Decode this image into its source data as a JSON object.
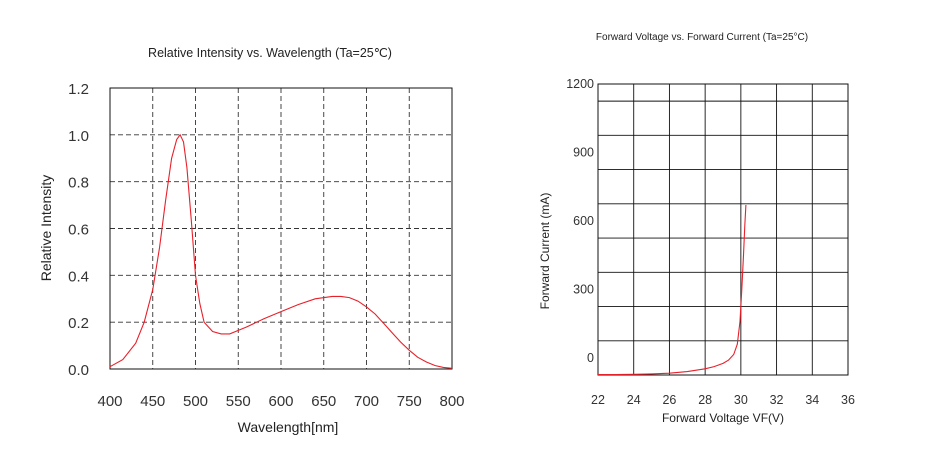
{
  "chart_data": [
    {
      "type": "line",
      "title": "Relative Intensity vs. Wavelength (Ta=25℃)",
      "xlabel": "Wavelength[nm]",
      "ylabel": "Relative Intensity",
      "xlim": [
        400,
        800
      ],
      "ylim": [
        0.0,
        1.2
      ],
      "xticks": [
        "400",
        "450",
        "500",
        "550",
        "600",
        "650",
        "700",
        "750",
        "800"
      ],
      "yticks": [
        "0.0",
        "0.2",
        "0.4",
        "0.6",
        "0.8",
        "1.0",
        "1.2"
      ],
      "grid": "dashed",
      "line_color": "#e8202a",
      "series": [
        {
          "x": [
            400,
            415,
            430,
            440,
            450,
            458,
            465,
            472,
            478,
            482,
            486,
            490,
            495,
            500,
            505,
            510,
            520,
            530,
            540,
            550,
            560,
            580,
            600,
            620,
            640,
            660,
            670,
            680,
            690,
            700,
            710,
            720,
            730,
            740,
            750,
            760,
            770,
            780,
            790,
            800
          ],
          "y": [
            0.01,
            0.04,
            0.11,
            0.2,
            0.34,
            0.52,
            0.72,
            0.9,
            0.98,
            1.0,
            0.97,
            0.86,
            0.64,
            0.4,
            0.28,
            0.2,
            0.16,
            0.15,
            0.15,
            0.165,
            0.18,
            0.215,
            0.245,
            0.275,
            0.3,
            0.31,
            0.31,
            0.305,
            0.29,
            0.265,
            0.235,
            0.195,
            0.155,
            0.115,
            0.08,
            0.05,
            0.03,
            0.015,
            0.007,
            0.003
          ]
        }
      ]
    },
    {
      "type": "line",
      "title": "Forward Voltage vs. Forward Current (Ta=25°C)",
      "xlabel": "Forward Voltage  VF(V)",
      "ylabel": "Forward Current (mA)",
      "xlim": [
        22,
        36
      ],
      "ylim": [
        -75,
        1200
      ],
      "xticks": [
        "22",
        "24",
        "26",
        "28",
        "30",
        "32",
        "34",
        "36"
      ],
      "yticks": [
        "0",
        "300",
        "600",
        "900",
        "1200"
      ],
      "grid": "solid",
      "line_color": "#e8202a",
      "series": [
        {
          "x": [
            22,
            23,
            24,
            25,
            26,
            27,
            28,
            28.5,
            29,
            29.3,
            29.6,
            29.8,
            29.95,
            30.05,
            30.15,
            30.22,
            30.28
          ],
          "y": [
            -73,
            -73,
            -72,
            -70,
            -67,
            -60,
            -48,
            -38,
            -24,
            -10,
            15,
            60,
            160,
            300,
            450,
            580,
            670
          ]
        }
      ]
    }
  ]
}
